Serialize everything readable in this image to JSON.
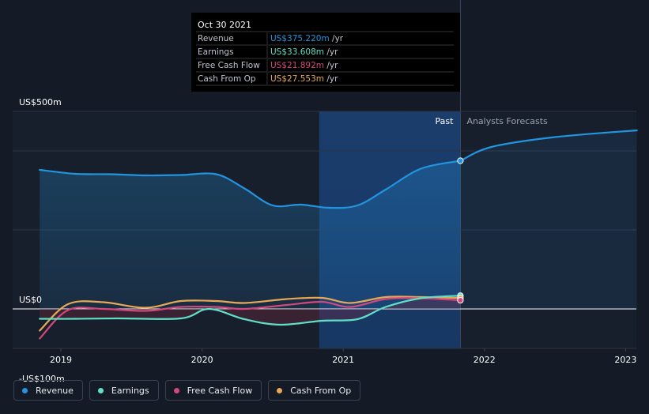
{
  "colors": {
    "revenue": "#2394df",
    "earnings": "#5fe0c6",
    "free_cash_flow": "#d2487c",
    "cash_from_op": "#e7a957",
    "background": "#151b26"
  },
  "tooltip": {
    "date": "Oct 30 2021",
    "rows": [
      {
        "label": "Revenue",
        "value": "US$375.220m",
        "unit": "/yr",
        "color": "#2394df"
      },
      {
        "label": "Earnings",
        "value": "US$33.608m",
        "unit": "/yr",
        "color": "#5fe0c6"
      },
      {
        "label": "Free Cash Flow",
        "value": "US$21.892m",
        "unit": "/yr",
        "color": "#d2487c"
      },
      {
        "label": "Cash From Op",
        "value": "US$27.553m",
        "unit": "/yr",
        "color": "#e7a957"
      }
    ]
  },
  "labels": {
    "past": "Past",
    "forecast": "Analysts Forecasts"
  },
  "legend": [
    {
      "label": "Revenue",
      "color": "#2394df"
    },
    {
      "label": "Earnings",
      "color": "#5fe0c6"
    },
    {
      "label": "Free Cash Flow",
      "color": "#d2487c"
    },
    {
      "label": "Cash From Op",
      "color": "#e7a957"
    }
  ],
  "chart_data": {
    "type": "line",
    "y_tick_labels": [
      "US$500m",
      "US$0",
      "-US$100m"
    ],
    "y_ticks": [
      500,
      0,
      -100
    ],
    "ylim": [
      -100,
      500
    ],
    "x_tick_labels": [
      "2019",
      "2020",
      "2021",
      "2022",
      "2023"
    ],
    "x_ticks": [
      2019,
      2020,
      2021,
      2022,
      2023
    ],
    "xlim": [
      2018.85,
      2023.08
    ],
    "past_end": 2021.83,
    "highlight_start": 2020.83,
    "series": [
      {
        "name": "Revenue",
        "color": "#2394df",
        "x": [
          2018.85,
          2019.1,
          2019.35,
          2019.6,
          2019.85,
          2020.1,
          2020.3,
          2020.5,
          2020.7,
          2020.9,
          2021.1,
          2021.3,
          2021.55,
          2021.83
        ],
        "y": [
          352,
          342,
          341,
          338,
          339,
          341,
          305,
          262,
          264,
          256,
          262,
          302,
          355,
          375
        ]
      },
      {
        "name": "Revenue forecast",
        "color": "#2394df",
        "x": [
          2021.83,
          2022.05,
          2022.5,
          2023.08
        ],
        "y": [
          375,
          410,
          435,
          452
        ]
      },
      {
        "name": "Earnings",
        "color": "#5fe0c6",
        "x": [
          2018.85,
          2019.1,
          2019.4,
          2019.85,
          2020.05,
          2020.3,
          2020.55,
          2020.85,
          2021.1,
          2021.3,
          2021.55,
          2021.83
        ],
        "y": [
          -25,
          -25,
          -24,
          -24,
          0,
          -26,
          -40,
          -30,
          -26,
          5,
          27,
          33.6
        ]
      },
      {
        "name": "Free Cash Flow",
        "color": "#d2487c",
        "x": [
          2018.85,
          2019.05,
          2019.3,
          2019.6,
          2019.85,
          2020.1,
          2020.3,
          2020.6,
          2020.85,
          2021.05,
          2021.3,
          2021.55,
          2021.83
        ],
        "y": [
          -75,
          -3,
          0,
          -5,
          5,
          5,
          0,
          10,
          18,
          5,
          25,
          27,
          21.9
        ]
      },
      {
        "name": "Cash From Op",
        "color": "#e7a957",
        "x": [
          2018.85,
          2019.05,
          2019.3,
          2019.6,
          2019.85,
          2020.1,
          2020.3,
          2020.6,
          2020.85,
          2021.05,
          2021.3,
          2021.55,
          2021.83
        ],
        "y": [
          -55,
          12,
          17,
          3,
          20,
          20,
          15,
          25,
          28,
          15,
          30,
          30,
          27.6
        ]
      }
    ],
    "grid": true,
    "legend_position": "bottom-left"
  }
}
